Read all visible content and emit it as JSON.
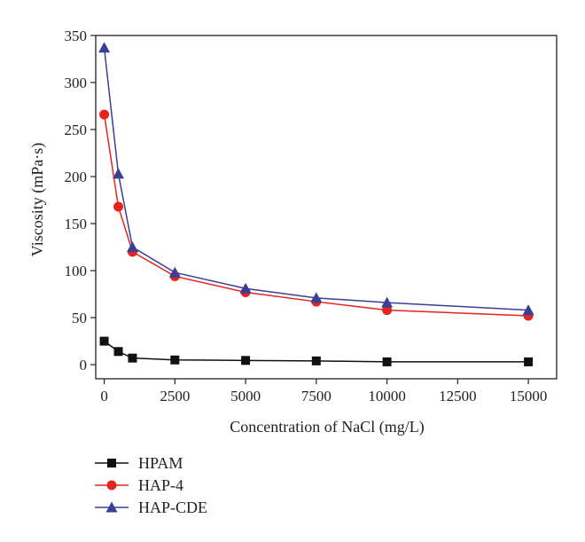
{
  "chart_data": {
    "type": "line",
    "title": "",
    "xlabel": "Concentration of NaCl (mg/L)",
    "ylabel": "Viscosity (mPa·s)",
    "xlim": [
      -300,
      16000
    ],
    "ylim": [
      -15,
      350
    ],
    "xticks": [
      0,
      2500,
      5000,
      7500,
      10000,
      12500,
      15000
    ],
    "yticks": [
      0,
      50,
      100,
      150,
      200,
      250,
      300,
      350
    ],
    "grid": false,
    "legend_position": "bottom-left, below plot",
    "series": [
      {
        "name": "HPAM",
        "color": "#111111",
        "marker": "square",
        "x": [
          0,
          500,
          1000,
          2500,
          5000,
          7500,
          10000,
          15000
        ],
        "y": [
          25,
          14,
          7,
          5,
          4.5,
          4,
          3,
          3
        ]
      },
      {
        "name": "HAP-4",
        "color": "#e8231e",
        "marker": "circle",
        "x": [
          0,
          500,
          1000,
          2500,
          5000,
          7500,
          10000,
          15000
        ],
        "y": [
          266,
          168,
          120,
          94,
          77,
          67,
          58,
          52
        ]
      },
      {
        "name": "HAP-CDE",
        "color": "#3a3f96",
        "marker": "triangle",
        "x": [
          0,
          500,
          1000,
          2500,
          5000,
          7500,
          10000,
          15000
        ],
        "y": [
          337,
          203,
          125,
          98,
          81,
          71,
          66,
          58
        ]
      }
    ]
  }
}
